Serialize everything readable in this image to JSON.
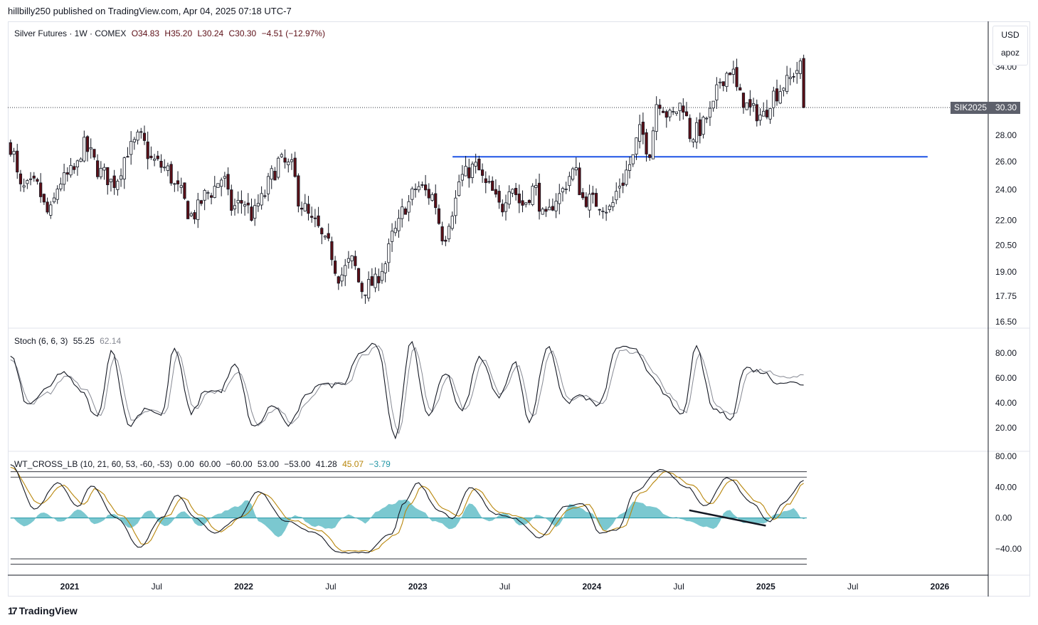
{
  "header": {
    "published_by": "hillbilly250 published on TradingView.com, Apr 04, 2025 07:18 UTC-7"
  },
  "legend_main": {
    "symbol": "Silver Futures · 1W · COMEX",
    "open": "O34.83",
    "high": "H35.20",
    "low": "L30.24",
    "close": "C30.30",
    "change": "−4.51 (−12.97%)"
  },
  "scale_box": {
    "currency": "USD",
    "user": "apoz"
  },
  "price_tag": {
    "symbol": "SIK2025",
    "price": "30.30"
  },
  "legend_stoch": {
    "title": "Stoch (6, 6, 3)",
    "k": "55.25",
    "d": "62.14"
  },
  "legend_wt": {
    "title": "WT_CROSS_LB (10, 21, 60, 53, -60, -53)",
    "v1": "0.00",
    "v2": "60.00",
    "v3": "−60.00",
    "v4": "53.00",
    "v5": "−53.00",
    "v6": "41.28",
    "v7": "45.07",
    "v8": "−3.79"
  },
  "brand": {
    "name": "TradingView"
  },
  "colors": {
    "up_candle": "#ffffff",
    "down_candle": "#5d0f17",
    "green_candle": "#2e7d32",
    "trendline": "#1e53e5",
    "stoch_k": "#131722",
    "stoch_d": "#868993",
    "wt1": "#131722",
    "wt2": "#b8860b",
    "area": "#4fb5c0",
    "v7": "#b8860b",
    "v8": "#2196a6"
  },
  "chart_data": [
    {
      "type": "candlestick",
      "title": "Silver Futures · 1W · COMEX",
      "log_scale": true,
      "y_ticks": [
        "34.00",
        "28.00",
        "26.00",
        "24.00",
        "22.00",
        "20.50",
        "19.00",
        "17.75",
        "16.50"
      ],
      "y_tick_values": [
        34,
        28,
        26,
        24,
        22,
        20.5,
        19,
        17.75,
        16.5
      ],
      "x_ticks": [
        "2021",
        "Jul",
        "2022",
        "Jul",
        "2023",
        "Jul",
        "2024",
        "Jul",
        "2025",
        "Jul",
        "2026"
      ],
      "x_tick_years": [
        2021.0,
        2021.5,
        2022.0,
        2022.5,
        2023.0,
        2023.5,
        2024.0,
        2024.5,
        2025.0,
        2025.5,
        2026.0
      ],
      "x_start_year": 2020.66,
      "last_close": 30.3,
      "horizontal_line": {
        "value": 26.35,
        "from_year": 2023.2,
        "to_year": 2025.93
      },
      "close_anchors": [
        [
          2020.66,
          27.2
        ],
        [
          2020.72,
          24.0
        ],
        [
          2020.8,
          24.3
        ],
        [
          2020.88,
          22.4
        ],
        [
          2020.95,
          24.6
        ],
        [
          2021.03,
          25.3
        ],
        [
          2021.08,
          27.2
        ],
        [
          2021.1,
          26.8
        ],
        [
          2021.18,
          25.2
        ],
        [
          2021.25,
          24.5
        ],
        [
          2021.35,
          27.0
        ],
        [
          2021.4,
          27.8
        ],
        [
          2021.48,
          26.0
        ],
        [
          2021.55,
          25.5
        ],
        [
          2021.62,
          24.0
        ],
        [
          2021.7,
          22.3
        ],
        [
          2021.8,
          23.8
        ],
        [
          2021.88,
          24.8
        ],
        [
          2021.93,
          22.8
        ],
        [
          2022.0,
          23.2
        ],
        [
          2022.05,
          22.3
        ],
        [
          2022.1,
          23.3
        ],
        [
          2022.17,
          25.1
        ],
        [
          2022.2,
          26.0
        ],
        [
          2022.27,
          25.6
        ],
        [
          2022.33,
          23.0
        ],
        [
          2022.4,
          21.8
        ],
        [
          2022.48,
          20.5
        ],
        [
          2022.55,
          18.8
        ],
        [
          2022.62,
          19.6
        ],
        [
          2022.68,
          18.1
        ],
        [
          2022.75,
          18.4
        ],
        [
          2022.8,
          19.3
        ],
        [
          2022.87,
          21.3
        ],
        [
          2022.93,
          22.9
        ],
        [
          2023.0,
          24.2
        ],
        [
          2023.08,
          23.6
        ],
        [
          2023.15,
          21.0
        ],
        [
          2023.2,
          22.7
        ],
        [
          2023.25,
          24.9
        ],
        [
          2023.33,
          25.6
        ],
        [
          2023.4,
          24.2
        ],
        [
          2023.48,
          22.8
        ],
        [
          2023.53,
          24.4
        ],
        [
          2023.6,
          23.0
        ],
        [
          2023.67,
          24.1
        ],
        [
          2023.73,
          22.0
        ],
        [
          2023.8,
          23.5
        ],
        [
          2023.9,
          25.3
        ],
        [
          2023.95,
          23.4
        ],
        [
          2024.05,
          23.1
        ],
        [
          2024.1,
          22.7
        ],
        [
          2024.17,
          24.5
        ],
        [
          2024.22,
          25.8
        ],
        [
          2024.28,
          28.3
        ],
        [
          2024.33,
          26.8
        ],
        [
          2024.38,
          31.0
        ],
        [
          2024.45,
          29.5
        ],
        [
          2024.52,
          30.6
        ],
        [
          2024.57,
          28.0
        ],
        [
          2024.62,
          28.5
        ],
        [
          2024.68,
          29.8
        ],
        [
          2024.75,
          33.0
        ],
        [
          2024.8,
          33.8
        ],
        [
          2024.85,
          31.2
        ],
        [
          2024.92,
          30.0
        ],
        [
          2024.98,
          29.6
        ],
        [
          2025.05,
          31.5
        ],
        [
          2025.12,
          32.5
        ],
        [
          2025.18,
          33.8
        ],
        [
          2025.21,
          34.0
        ],
        [
          2025.23,
          30.3
        ]
      ]
    },
    {
      "type": "line",
      "title": "Stoch (6, 6, 3)",
      "y_ticks": [
        "80.00",
        "60.00",
        "40.00",
        "20.00"
      ],
      "y_tick_values": [
        80,
        60,
        40,
        20
      ],
      "series": [
        {
          "name": "%K",
          "last": 55.25
        },
        {
          "name": "%D",
          "last": 62.14
        }
      ],
      "k_anchors": [
        [
          2020.66,
          78
        ],
        [
          2020.76,
          38
        ],
        [
          2020.86,
          50
        ],
        [
          2020.96,
          65
        ],
        [
          2021.06,
          50
        ],
        [
          2021.16,
          28
        ],
        [
          2021.24,
          82
        ],
        [
          2021.34,
          22
        ],
        [
          2021.44,
          36
        ],
        [
          2021.53,
          30
        ],
        [
          2021.6,
          84
        ],
        [
          2021.7,
          32
        ],
        [
          2021.78,
          50
        ],
        [
          2021.86,
          49
        ],
        [
          2021.95,
          70
        ],
        [
          2022.06,
          20
        ],
        [
          2022.17,
          38
        ],
        [
          2022.26,
          22
        ],
        [
          2022.36,
          45
        ],
        [
          2022.43,
          56
        ],
        [
          2022.5,
          54
        ],
        [
          2022.58,
          57
        ],
        [
          2022.66,
          80
        ],
        [
          2022.76,
          88
        ],
        [
          2022.87,
          12
        ],
        [
          2022.96,
          88
        ],
        [
          2023.06,
          30
        ],
        [
          2023.16,
          65
        ],
        [
          2023.25,
          33
        ],
        [
          2023.36,
          77
        ],
        [
          2023.46,
          45
        ],
        [
          2023.56,
          72
        ],
        [
          2023.64,
          25
        ],
        [
          2023.75,
          86
        ],
        [
          2023.85,
          40
        ],
        [
          2023.93,
          46
        ],
        [
          2024.04,
          38
        ],
        [
          2024.15,
          85
        ],
        [
          2024.25,
          82
        ],
        [
          2024.35,
          62
        ],
        [
          2024.42,
          45
        ],
        [
          2024.52,
          30
        ],
        [
          2024.6,
          84
        ],
        [
          2024.7,
          35
        ],
        [
          2024.8,
          28
        ],
        [
          2024.88,
          68
        ],
        [
          2024.98,
          65
        ],
        [
          2025.06,
          57
        ],
        [
          2025.23,
          55.25
        ]
      ],
      "d_anchors": [
        [
          2020.66,
          75
        ],
        [
          2020.78,
          40
        ],
        [
          2020.88,
          48
        ],
        [
          2020.98,
          62
        ],
        [
          2021.08,
          52
        ],
        [
          2021.18,
          30
        ],
        [
          2021.26,
          78
        ],
        [
          2021.36,
          25
        ],
        [
          2021.46,
          34
        ],
        [
          2021.55,
          31
        ],
        [
          2021.62,
          80
        ],
        [
          2021.72,
          35
        ],
        [
          2021.8,
          48
        ],
        [
          2021.88,
          50
        ],
        [
          2021.97,
          66
        ],
        [
          2022.08,
          23
        ],
        [
          2022.19,
          36
        ],
        [
          2022.28,
          24
        ],
        [
          2022.38,
          43
        ],
        [
          2022.45,
          54
        ],
        [
          2022.52,
          55
        ],
        [
          2022.6,
          56
        ],
        [
          2022.68,
          78
        ],
        [
          2022.78,
          85
        ],
        [
          2022.89,
          16
        ],
        [
          2022.98,
          84
        ],
        [
          2023.08,
          33
        ],
        [
          2023.18,
          62
        ],
        [
          2023.27,
          35
        ],
        [
          2023.38,
          74
        ],
        [
          2023.48,
          47
        ],
        [
          2023.58,
          69
        ],
        [
          2023.66,
          28
        ],
        [
          2023.77,
          82
        ],
        [
          2023.87,
          42
        ],
        [
          2023.95,
          45
        ],
        [
          2024.06,
          40
        ],
        [
          2024.17,
          82
        ],
        [
          2024.27,
          80
        ],
        [
          2024.37,
          63
        ],
        [
          2024.44,
          47
        ],
        [
          2024.54,
          32
        ],
        [
          2024.62,
          80
        ],
        [
          2024.72,
          37
        ],
        [
          2024.82,
          30
        ],
        [
          2024.9,
          65
        ],
        [
          2025.0,
          66
        ],
        [
          2025.08,
          60
        ],
        [
          2025.23,
          62.14
        ]
      ]
    },
    {
      "type": "line",
      "title": "WT_CROSS_LB (10, 21, 60, 53, -60, -53)",
      "y_ticks": [
        "80.00",
        "40.00",
        "0.00",
        "−40.00"
      ],
      "y_tick_values": [
        80,
        40,
        0,
        -40
      ],
      "levels": [
        0,
        60,
        -60,
        53,
        -53
      ],
      "series": [
        {
          "name": "41.28",
          "last": 41.28
        },
        {
          "name": "45.07",
          "last": 45.07
        },
        {
          "name": "−3.79",
          "last": -3.79
        }
      ],
      "wt1_anchors": [
        [
          2020.66,
          70
        ],
        [
          2020.8,
          12
        ],
        [
          2020.93,
          45
        ],
        [
          2021.05,
          15
        ],
        [
          2021.12,
          42
        ],
        [
          2021.27,
          0
        ],
        [
          2021.4,
          -38
        ],
        [
          2021.53,
          0
        ],
        [
          2021.62,
          30
        ],
        [
          2021.72,
          0
        ],
        [
          2021.83,
          -20
        ],
        [
          2021.97,
          0
        ],
        [
          2022.08,
          35
        ],
        [
          2022.25,
          -5
        ],
        [
          2022.4,
          -18
        ],
        [
          2022.55,
          -45
        ],
        [
          2022.7,
          -45
        ],
        [
          2022.85,
          -20
        ],
        [
          2022.92,
          20
        ],
        [
          2023.0,
          45
        ],
        [
          2023.12,
          10
        ],
        [
          2023.2,
          0
        ],
        [
          2023.3,
          40
        ],
        [
          2023.45,
          5
        ],
        [
          2023.55,
          0
        ],
        [
          2023.7,
          -25
        ],
        [
          2023.85,
          15
        ],
        [
          2023.95,
          18
        ],
        [
          2024.05,
          -20
        ],
        [
          2024.15,
          -15
        ],
        [
          2024.25,
          35
        ],
        [
          2024.4,
          63
        ],
        [
          2024.55,
          40
        ],
        [
          2024.65,
          15
        ],
        [
          2024.78,
          52
        ],
        [
          2024.92,
          20
        ],
        [
          2025.02,
          -5
        ],
        [
          2025.1,
          20
        ],
        [
          2025.22,
          48
        ],
        [
          2025.23,
          41.28
        ]
      ],
      "wt2_anchors": [
        [
          2020.66,
          65
        ],
        [
          2020.83,
          18
        ],
        [
          2020.96,
          42
        ],
        [
          2021.08,
          18
        ],
        [
          2021.15,
          38
        ],
        [
          2021.3,
          3
        ],
        [
          2021.43,
          -35
        ],
        [
          2021.56,
          2
        ],
        [
          2021.65,
          27
        ],
        [
          2021.75,
          3
        ],
        [
          2021.86,
          -18
        ],
        [
          2022.0,
          2
        ],
        [
          2022.11,
          32
        ],
        [
          2022.28,
          -3
        ],
        [
          2022.43,
          -16
        ],
        [
          2022.58,
          -43
        ],
        [
          2022.73,
          -43
        ],
        [
          2022.88,
          -22
        ],
        [
          2022.95,
          17
        ],
        [
          2023.03,
          42
        ],
        [
          2023.15,
          12
        ],
        [
          2023.23,
          2
        ],
        [
          2023.33,
          38
        ],
        [
          2023.48,
          7
        ],
        [
          2023.58,
          2
        ],
        [
          2023.73,
          -22
        ],
        [
          2023.88,
          12
        ],
        [
          2023.98,
          17
        ],
        [
          2024.08,
          -18
        ],
        [
          2024.18,
          -12
        ],
        [
          2024.28,
          32
        ],
        [
          2024.43,
          60
        ],
        [
          2024.58,
          42
        ],
        [
          2024.68,
          18
        ],
        [
          2024.81,
          50
        ],
        [
          2024.95,
          22
        ],
        [
          2025.05,
          -2
        ],
        [
          2025.13,
          18
        ],
        [
          2025.22,
          45.07
        ],
        [
          2025.23,
          45.07
        ]
      ],
      "area_anchors": [
        [
          2020.66,
          0
        ],
        [
          2020.75,
          -10
        ],
        [
          2020.85,
          8
        ],
        [
          2020.95,
          -6
        ],
        [
          2021.05,
          12
        ],
        [
          2021.15,
          -8
        ],
        [
          2021.25,
          6
        ],
        [
          2021.35,
          -14
        ],
        [
          2021.45,
          10
        ],
        [
          2021.55,
          -12
        ],
        [
          2021.65,
          8
        ],
        [
          2021.75,
          -10
        ],
        [
          2021.85,
          6
        ],
        [
          2021.95,
          14
        ],
        [
          2022.02,
          22
        ],
        [
          2022.1,
          -6
        ],
        [
          2022.2,
          -24
        ],
        [
          2022.3,
          4
        ],
        [
          2022.4,
          -10
        ],
        [
          2022.5,
          -14
        ],
        [
          2022.6,
          4
        ],
        [
          2022.7,
          -6
        ],
        [
          2022.78,
          10
        ],
        [
          2022.85,
          18
        ],
        [
          2022.92,
          24
        ],
        [
          2023.0,
          12
        ],
        [
          2023.1,
          -4
        ],
        [
          2023.2,
          -14
        ],
        [
          2023.3,
          18
        ],
        [
          2023.4,
          -4
        ],
        [
          2023.5,
          6
        ],
        [
          2023.6,
          -10
        ],
        [
          2023.7,
          4
        ],
        [
          2023.8,
          -12
        ],
        [
          2023.88,
          18
        ],
        [
          2023.98,
          8
        ],
        [
          2024.08,
          -16
        ],
        [
          2024.18,
          6
        ],
        [
          2024.25,
          22
        ],
        [
          2024.35,
          14
        ],
        [
          2024.45,
          2
        ],
        [
          2024.55,
          -4
        ],
        [
          2024.62,
          -10
        ],
        [
          2024.7,
          -14
        ],
        [
          2024.78,
          10
        ],
        [
          2024.88,
          -6
        ],
        [
          2024.98,
          -8
        ],
        [
          2025.06,
          4
        ],
        [
          2025.15,
          12
        ],
        [
          2025.23,
          -3.79
        ]
      ],
      "trendline": {
        "from": [
          2024.56,
          10
        ],
        "to": [
          2025.0,
          -10
        ]
      }
    }
  ]
}
